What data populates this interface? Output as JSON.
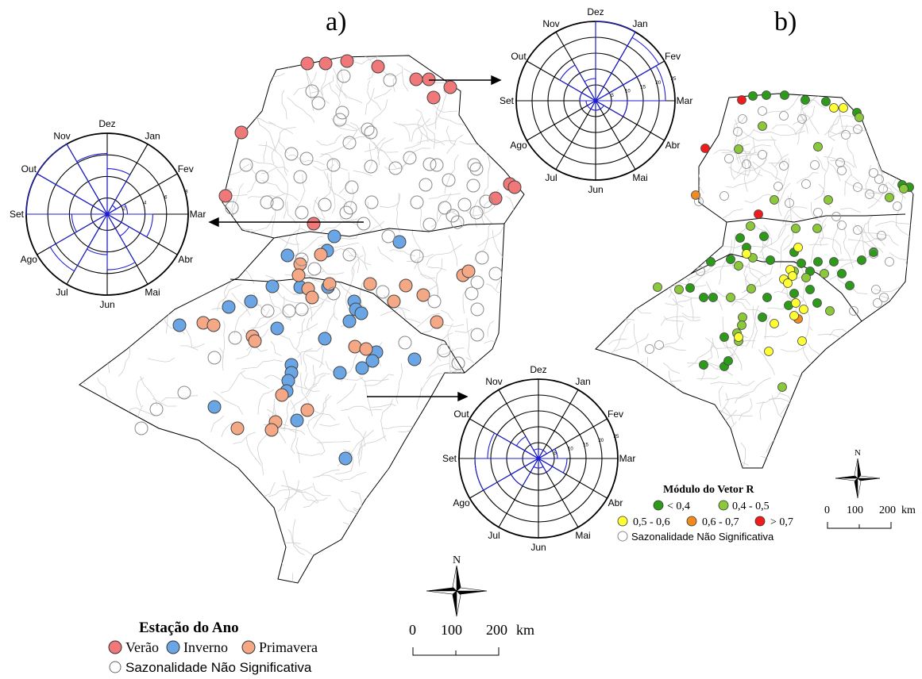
{
  "panels": {
    "a": "a)",
    "b": "b)"
  },
  "months": [
    "Dez",
    "Jan",
    "Fev",
    "Mar",
    "Abr",
    "Mai",
    "Jun",
    "Jul",
    "Ago",
    "Set",
    "Out",
    "Nov"
  ],
  "roses": [
    {
      "id": "rose-left",
      "ring_labels": [
        "2",
        "4",
        "6",
        "8"
      ],
      "month_values": [
        4.5,
        1,
        2,
        4.5,
        2.5,
        5.5,
        4,
        6.5,
        3.5,
        9,
        9.5,
        6
      ]
    },
    {
      "id": "rose-top-right",
      "ring_labels": [
        "5",
        "10",
        "15",
        "20",
        "25"
      ],
      "month_values": [
        25,
        23,
        22,
        10,
        3,
        3,
        3,
        3,
        3,
        5,
        13,
        7
      ]
    },
    {
      "id": "rose-bottom",
      "ring_labels": [
        "5",
        "10",
        "15",
        "20",
        "25"
      ],
      "month_values": [
        3,
        3,
        6,
        9,
        5,
        3,
        3,
        10,
        20,
        16,
        8,
        3
      ]
    }
  ],
  "legend_a": {
    "title": "Estação do Ano",
    "items": [
      {
        "label": "Verão",
        "color": "#f07878"
      },
      {
        "label": "Inverno",
        "color": "#6aa6e6"
      },
      {
        "label": "Primavera",
        "color": "#f5a886"
      }
    ],
    "not_significant": "Sazonalidade Não Significativa"
  },
  "legend_b": {
    "title": "Módulo do Vetor R",
    "items": [
      {
        "label": "< 0,4",
        "color": "#2e9a1a"
      },
      {
        "label": "0,4 - 0,5",
        "color": "#8bc83a"
      },
      {
        "label": "0,5 - 0,6",
        "color": "#ffff33"
      },
      {
        "label": "0,6 - 0,7",
        "color": "#f28a20"
      },
      {
        "label": "> 0,7",
        "color": "#ee1c1c"
      }
    ],
    "not_significant": "Sazonalidade Não Significativa"
  },
  "compass": {
    "north_label": "N"
  },
  "scale_a": {
    "ticks": [
      "0",
      "100",
      "200"
    ],
    "unit": "km"
  },
  "scale_b": {
    "ticks": [
      "0",
      "100",
      "200"
    ],
    "unit": "km"
  },
  "colors": {
    "rose_line": "#1f1fd0",
    "river": "#cfcfcf",
    "outline": "#000000"
  }
}
